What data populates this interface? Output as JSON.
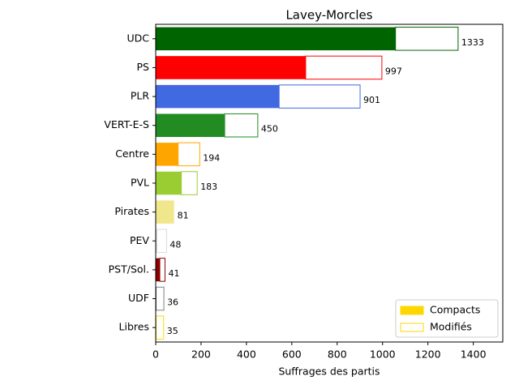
{
  "chart_data": {
    "type": "stacked-barh",
    "title": "Lavey-Morcles",
    "xlabel": "Suffrages des partis",
    "categories": [
      "UDC",
      "PS",
      "PLR",
      "VERT-E-S",
      "Centre",
      "PVL",
      "Pirates",
      "PEV",
      "PST/Sol.",
      "UDF",
      "Libres"
    ],
    "colors": [
      "#006400",
      "#ff0000",
      "#4169e1",
      "#228b22",
      "#ffa500",
      "#9acd32",
      "#f0e68c",
      "#dcdcdc",
      "#8b0000",
      "#808080",
      "#ffd700"
    ],
    "series": [
      {
        "name": "Compacts",
        "color": "#ffd700",
        "values": [
          1057,
          661,
          544,
          304,
          99,
          113,
          81,
          5,
          18,
          2,
          2
        ]
      },
      {
        "name": "Modifiés",
        "color": "#ffd700",
        "values": [
          276,
          336,
          357,
          146,
          95,
          70,
          0,
          43,
          23,
          34,
          33
        ]
      }
    ],
    "totals": [
      1333,
      997,
      901,
      450,
      194,
      183,
      81,
      48,
      41,
      36,
      35
    ],
    "xlim": [
      0,
      1530
    ],
    "xticks": [
      0,
      200,
      400,
      600,
      800,
      1000,
      1200,
      1400
    ],
    "legend": "lower right"
  }
}
